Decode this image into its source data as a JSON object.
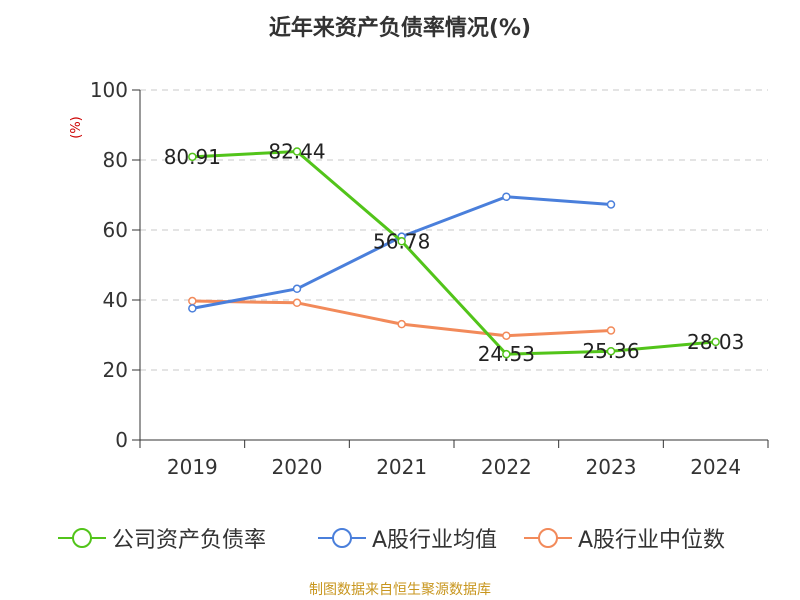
{
  "title": "近年来资产负债率情况(%)",
  "source": "制图数据来自恒生聚源数据库",
  "chart_data": {
    "type": "line",
    "title": "近年来资产负债率情况(%)",
    "ylabel": "(%)",
    "categories": [
      "2019",
      "2020",
      "2021",
      "2022",
      "2023",
      "2024"
    ],
    "ylim": [
      0,
      100
    ],
    "yticks": [
      0,
      20,
      40,
      60,
      80,
      100
    ],
    "grid": true,
    "legend_position": "bottom",
    "series": [
      {
        "name": "公司资产负债率",
        "color": "#52c41a",
        "values": [
          80.91,
          82.44,
          56.78,
          24.53,
          25.36,
          28.03
        ],
        "labels": [
          "80.91",
          "82.44",
          "56.78",
          "24.53",
          "25.36",
          "28.03"
        ]
      },
      {
        "name": "A股行业均值",
        "color": "#4a7fdb",
        "values": [
          37.6,
          43.2,
          58.1,
          69.5,
          67.3,
          null
        ]
      },
      {
        "name": "A股行业中位数",
        "color": "#f28a5a",
        "values": [
          39.7,
          39.2,
          33.1,
          29.8,
          31.3,
          null
        ]
      }
    ]
  }
}
